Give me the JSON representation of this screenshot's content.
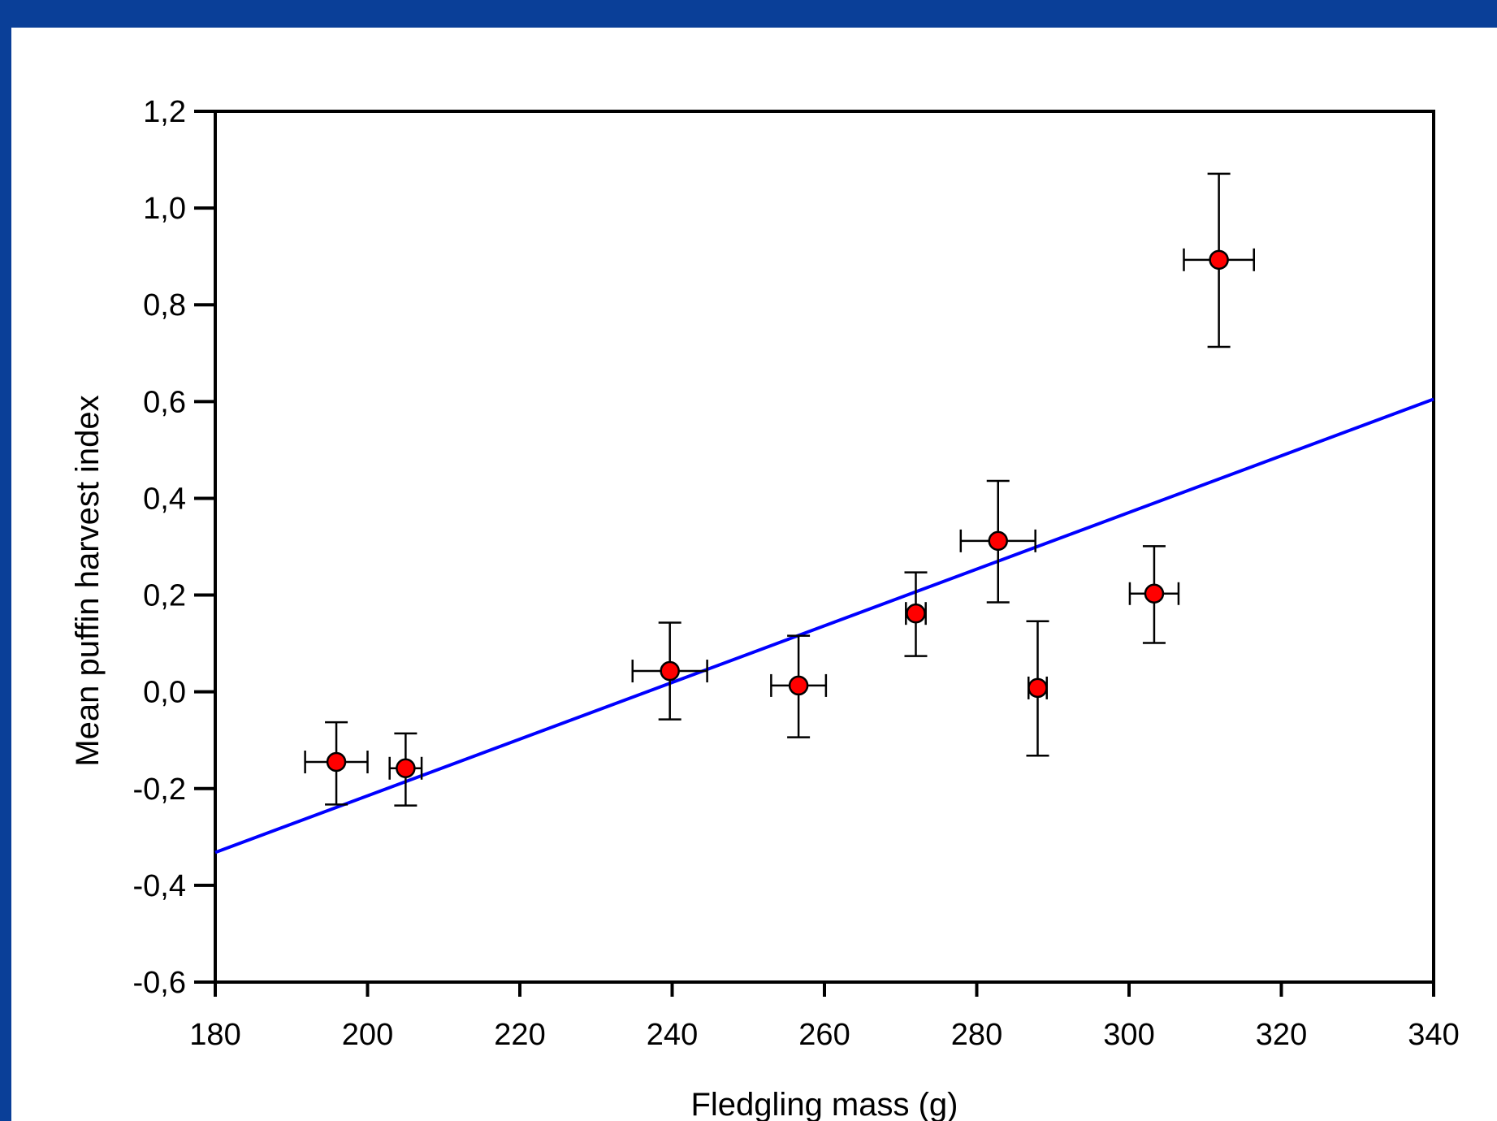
{
  "chart_data": {
    "type": "scatter",
    "title": "",
    "xlabel": "Fledgling mass (g)",
    "ylabel": "Mean puffin harvest index",
    "xlim": [
      180,
      340
    ],
    "ylim": [
      -0.6,
      1.2
    ],
    "xticks": [
      180,
      200,
      220,
      240,
      260,
      280,
      300,
      320,
      340
    ],
    "xtick_labels": [
      "180",
      "200",
      "220",
      "240",
      "260",
      "280",
      "300",
      "320",
      "340"
    ],
    "yticks": [
      -0.6,
      -0.4,
      -0.2,
      0.0,
      0.2,
      0.4,
      0.6,
      0.8,
      1.0,
      1.2
    ],
    "ytick_labels": [
      "-0,6",
      "-0,4",
      "-0,2",
      "0,0",
      "0,2",
      "0,4",
      "0,6",
      "0,8",
      "1,0",
      "1,2"
    ],
    "grid": false,
    "series": [
      {
        "points": [
          {
            "x": 195.9,
            "y": -0.145,
            "xerr": 4.1,
            "yerr_low": 0.088,
            "yerr_high": 0.082
          },
          {
            "x": 205.0,
            "y": -0.158,
            "xerr": 2.1,
            "yerr_low": 0.077,
            "yerr_high": 0.072
          },
          {
            "x": 239.7,
            "y": 0.043,
            "xerr": 4.9,
            "yerr_low": 0.1,
            "yerr_high": 0.1
          },
          {
            "x": 256.6,
            "y": 0.013,
            "xerr": 3.6,
            "yerr_low": 0.107,
            "yerr_high": 0.103
          },
          {
            "x": 272.0,
            "y": 0.162,
            "xerr": 1.3,
            "yerr_low": 0.088,
            "yerr_high": 0.085
          },
          {
            "x": 282.8,
            "y": 0.312,
            "xerr": 4.9,
            "yerr_low": 0.127,
            "yerr_high": 0.124
          },
          {
            "x": 288.0,
            "y": 0.008,
            "xerr": 1.2,
            "yerr_low": 0.14,
            "yerr_high": 0.138
          },
          {
            "x": 303.3,
            "y": 0.203,
            "xerr": 3.2,
            "yerr_low": 0.102,
            "yerr_high": 0.098
          },
          {
            "x": 311.8,
            "y": 0.893,
            "xerr": 4.6,
            "yerr_low": 0.18,
            "yerr_high": 0.178
          }
        ],
        "color": "#ff0000"
      }
    ],
    "fit_line": {
      "x": [
        180,
        340
      ],
      "y": [
        -0.332,
        0.605
      ],
      "color": "#0000ff"
    }
  }
}
